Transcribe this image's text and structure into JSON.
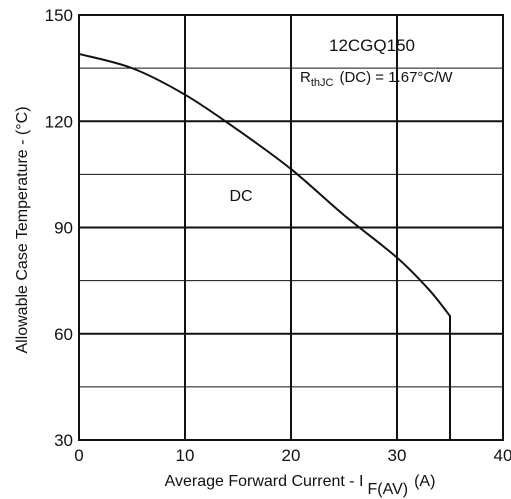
{
  "chart_data": {
    "type": "line",
    "title": "12CGQ150",
    "subtitle": {
      "prefix": "R",
      "subscript": "thJC",
      "suffix": "(DC) = 1.67°C/W"
    },
    "xlabel": {
      "main": "Average Forward Current - I",
      "subscript": "F(AV)",
      "unit": "(A)"
    },
    "ylabel": "Allowable Case Temperature - (°C)",
    "xlim": [
      0,
      40
    ],
    "ylim": [
      30,
      150
    ],
    "x_ticks": [
      0,
      10,
      20,
      30,
      40
    ],
    "y_ticks": [
      30,
      60,
      90,
      120,
      150
    ],
    "grid": true,
    "series": [
      {
        "name": "DC",
        "x": [
          0,
          5,
          10,
          15,
          20,
          25,
          30,
          33,
          35
        ],
        "y": [
          139,
          135,
          127.5,
          117.5,
          106.5,
          93.5,
          81.5,
          72.5,
          65
        ]
      }
    ],
    "colors": {
      "line": "#111111",
      "grid": "#111111",
      "background": "#ffffff"
    }
  }
}
